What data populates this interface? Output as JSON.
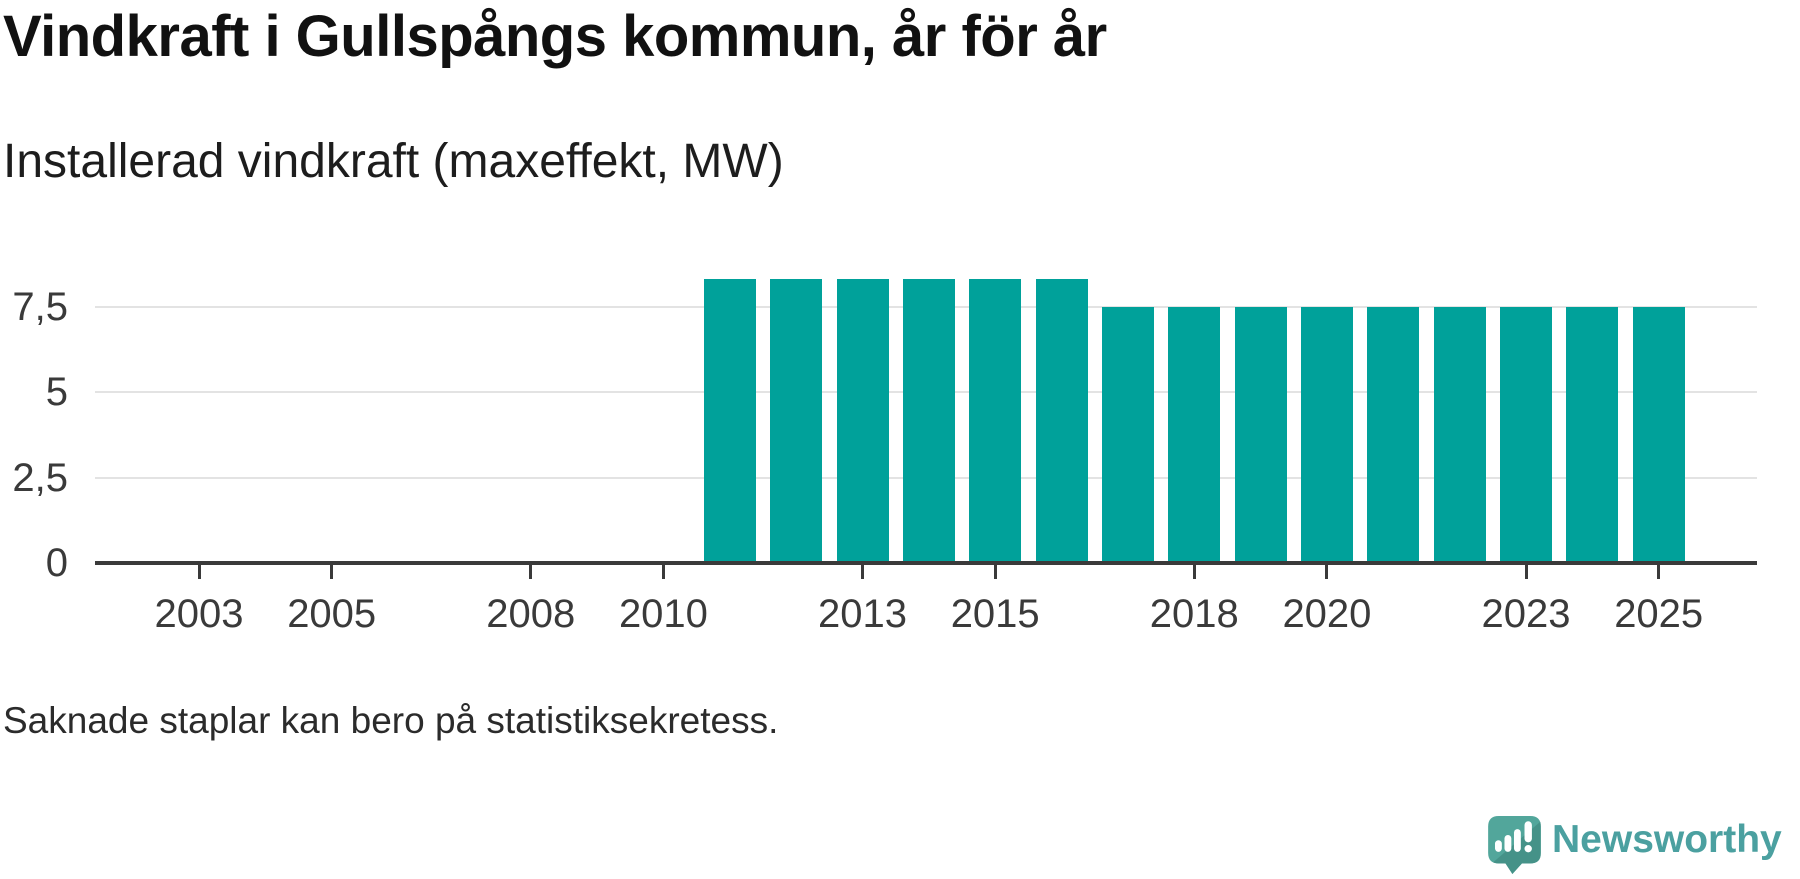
{
  "header": {
    "title": "Vindkraft i Gullspångs kommun, år för år",
    "subtitle": "Installerad vindkraft (maxeffekt, MW)"
  },
  "chart_data": {
    "type": "bar",
    "title": "Vindkraft i Gullspångs kommun, år för år",
    "subtitle": "Installerad vindkraft (maxeffekt, MW)",
    "ylabel": "Installerad vindkraft (maxeffekt, MW)",
    "xlabel": "",
    "unit": "MW",
    "x": [
      2011,
      2012,
      2013,
      2014,
      2015,
      2016,
      2017,
      2018,
      2019,
      2020,
      2021,
      2022,
      2023,
      2024,
      2025
    ],
    "values": [
      8.3,
      8.3,
      8.3,
      8.3,
      8.3,
      8.3,
      7.5,
      7.5,
      7.5,
      7.5,
      7.5,
      7.5,
      7.5,
      7.5,
      7.5
    ],
    "missing_x": [
      2001,
      2002,
      2003,
      2004,
      2005,
      2006,
      2007,
      2008,
      2009,
      2010
    ],
    "xlim": [
      2001.4,
      2026.5
    ],
    "ylim": [
      0,
      9.4
    ],
    "grid": "horizontal",
    "legend": "none",
    "bar_color": "#00a19a",
    "yticks": [
      {
        "value": 0,
        "label": "0"
      },
      {
        "value": 2.5,
        "label": "2,5"
      },
      {
        "value": 5,
        "label": "5"
      },
      {
        "value": 7.5,
        "label": "7,5"
      }
    ],
    "xticks": [
      {
        "year": 2003,
        "label": "2003"
      },
      {
        "year": 2005,
        "label": "2005"
      },
      {
        "year": 2008,
        "label": "2008"
      },
      {
        "year": 2010,
        "label": "2010"
      },
      {
        "year": 2013,
        "label": "2013"
      },
      {
        "year": 2015,
        "label": "2015"
      },
      {
        "year": 2018,
        "label": "2018"
      },
      {
        "year": 2020,
        "label": "2020"
      },
      {
        "year": 2023,
        "label": "2023"
      },
      {
        "year": 2025,
        "label": "2025"
      }
    ]
  },
  "footer": {
    "note": "Saknade staplar kan bero på statistiksekretess.",
    "brand": "Newsworthy"
  },
  "colors": {
    "bar": "#00a19a",
    "grid": "#e3e3e3",
    "axis": "#3a3a3a",
    "title_text": "#111111",
    "logo_icon": "#52a69b",
    "logo_icon_dark": "#459288",
    "logo_text": "#4ba0a0"
  }
}
